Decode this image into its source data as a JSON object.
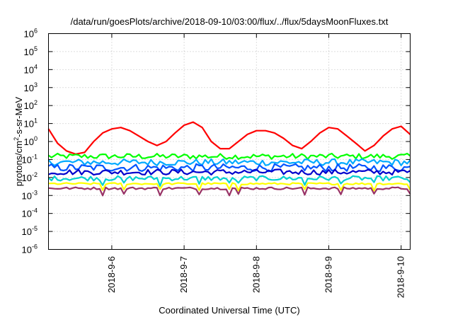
{
  "chart_data": {
    "type": "line",
    "title": "/data/run/goesPlots/archive/2018-09-10/03:00/flux/../flux/5daysMoonFluxes.txt",
    "xlabel": "Coordinated Universal Time (UTC)",
    "ylabel_base": "protons/cm",
    "ylabel_sup": "2",
    "ylabel_tail": "-s-sr-MeV",
    "y_scale": "log",
    "y_range_exponents": [
      -6,
      6
    ],
    "y_ticks": [
      {
        "base": "10",
        "exp": "6"
      },
      {
        "base": "10",
        "exp": "5"
      },
      {
        "base": "10",
        "exp": "4"
      },
      {
        "base": "10",
        "exp": "3"
      },
      {
        "base": "10",
        "exp": "2"
      },
      {
        "base": "10",
        "exp": "1"
      },
      {
        "base": "10",
        "exp": "0"
      },
      {
        "base": "10",
        "exp": "-1"
      },
      {
        "base": "10",
        "exp": "-2"
      },
      {
        "base": "10",
        "exp": "-3"
      },
      {
        "base": "10",
        "exp": "-4"
      },
      {
        "base": "10",
        "exp": "-5"
      },
      {
        "base": "10",
        "exp": "-6"
      }
    ],
    "x_range_days": [
      "2018-09-05T03:00",
      "2018-09-10T03:00"
    ],
    "x_ticks": [
      "2018-9-6",
      "2018-9-7",
      "2018-9-8",
      "2018-9-9",
      "2018-9-10"
    ],
    "grid": true,
    "legend": "none",
    "series": [
      {
        "color": "#ff0000",
        "x": [
          "2018-09-05T03:00",
          "2018-09-05T06:00",
          "2018-09-05T09:00",
          "2018-09-05T12:00",
          "2018-09-05T15:00",
          "2018-09-05T18:00",
          "2018-09-05T21:00",
          "2018-09-06T00:00",
          "2018-09-06T03:00",
          "2018-09-06T06:00",
          "2018-09-06T09:00",
          "2018-09-06T12:00",
          "2018-09-06T15:00",
          "2018-09-06T18:00",
          "2018-09-06T21:00",
          "2018-09-07T00:00",
          "2018-09-07T03:00",
          "2018-09-07T06:00",
          "2018-09-07T09:00",
          "2018-09-07T12:00",
          "2018-09-07T15:00",
          "2018-09-07T18:00",
          "2018-09-07T21:00",
          "2018-09-08T00:00",
          "2018-09-08T03:00",
          "2018-09-08T06:00",
          "2018-09-08T09:00",
          "2018-09-08T12:00",
          "2018-09-08T15:00",
          "2018-09-08T18:00",
          "2018-09-08T21:00",
          "2018-09-09T00:00",
          "2018-09-09T03:00",
          "2018-09-09T06:00",
          "2018-09-09T09:00",
          "2018-09-09T12:00",
          "2018-09-09T15:00",
          "2018-09-09T18:00",
          "2018-09-09T21:00",
          "2018-09-10T00:00",
          "2018-09-10T03:00"
        ],
        "y": [
          5,
          0.8,
          0.3,
          0.2,
          0.25,
          1.0,
          3.0,
          5.0,
          6.0,
          4.0,
          2.0,
          1.0,
          0.6,
          1.0,
          3.0,
          8.0,
          12.0,
          6.0,
          1.0,
          0.4,
          0.4,
          1.0,
          2.5,
          4.0,
          4.0,
          3.0,
          1.5,
          0.6,
          0.4,
          1.0,
          3.0,
          6.0,
          5.0,
          2.0,
          0.8,
          0.3,
          0.6,
          2.0,
          5.0,
          7.0,
          2.5
        ]
      },
      {
        "color": "#00ff00",
        "mean": 0.15,
        "amp": 0.12
      },
      {
        "color": "#00aaff",
        "mean": 0.07,
        "amp": 0.14
      },
      {
        "color": "#0055ff",
        "mean": 0.035,
        "amp": 0.16
      },
      {
        "color": "#0000cc",
        "mean": 0.02,
        "amp": 0.12
      },
      {
        "color": "#00d0d0",
        "mean": 0.009,
        "amp": 0.1
      },
      {
        "color": "#ffff00",
        "mean": 0.0045,
        "amp": 0.04
      },
      {
        "color": "#993366",
        "mean": 0.0025,
        "amp": 0.05
      }
    ]
  }
}
